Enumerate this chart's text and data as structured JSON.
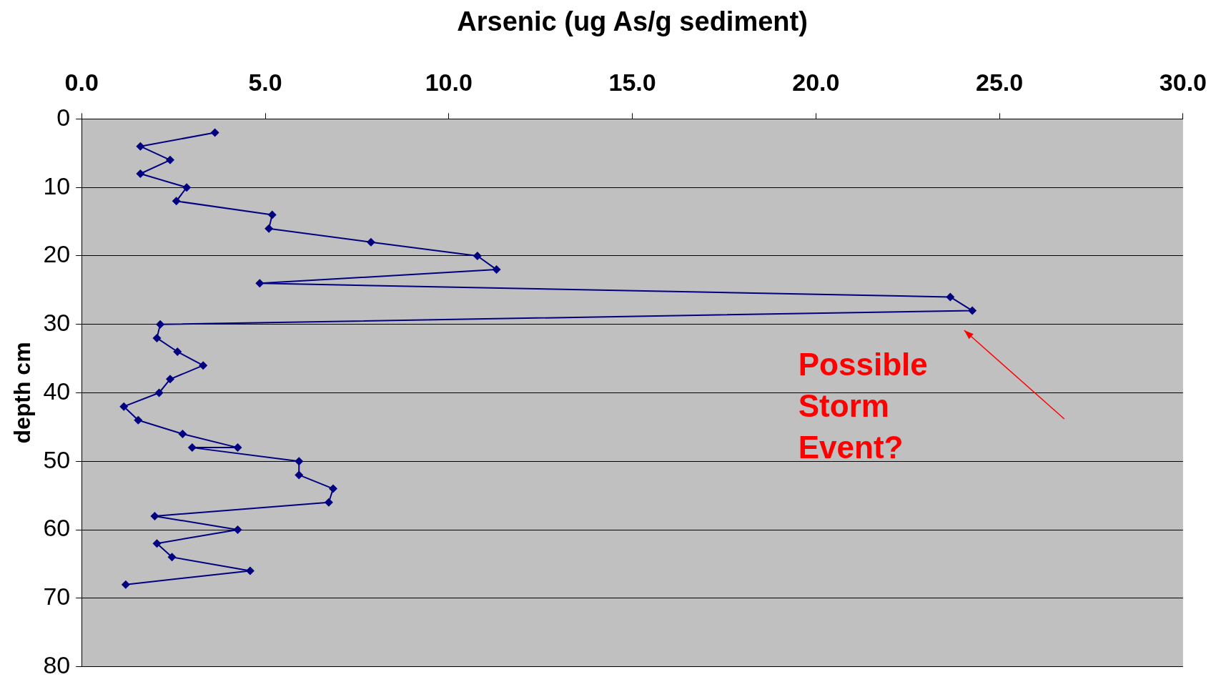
{
  "chart_data": {
    "type": "line",
    "xlabel": "Arsenic (ug As/g sediment)",
    "ylabel": "depth cm",
    "x": [
      3.63,
      1.6,
      2.41,
      1.6,
      2.86,
      2.58,
      5.19,
      5.1,
      7.88,
      10.78,
      11.3,
      4.85,
      23.66,
      24.26,
      2.14,
      2.05,
      2.61,
      3.31,
      2.41,
      2.11,
      1.15,
      1.54,
      2.75,
      4.25,
      3.01,
      5.92,
      5.92,
      6.85,
      6.73,
      1.99,
      4.25,
      2.05,
      2.46,
      4.59,
      1.2
    ],
    "series": [
      {
        "color": "#000080",
        "values": [
          2,
          4,
          6,
          8,
          10,
          12,
          14,
          16,
          18,
          20,
          22,
          24,
          26,
          28,
          30,
          32,
          34,
          36,
          38,
          40,
          42,
          44,
          46,
          48,
          48,
          50,
          52,
          54,
          56,
          58,
          60,
          62,
          64,
          66,
          68
        ]
      }
    ],
    "xlim": [
      0,
      30
    ],
    "xticks": [
      {
        "value": 0,
        "label": "0.0"
      },
      {
        "value": 5,
        "label": "5.0"
      },
      {
        "value": 10,
        "label": "10.0"
      },
      {
        "value": 15,
        "label": "15.0"
      },
      {
        "value": 20,
        "label": "20.0"
      },
      {
        "value": 25,
        "label": "25.0"
      },
      {
        "value": 30,
        "label": "30.0"
      }
    ],
    "ylim": [
      80,
      0
    ],
    "yticks": [
      0,
      10,
      20,
      30,
      40,
      50,
      60,
      70,
      80
    ],
    "grid": "y",
    "marker": "diamond",
    "line_style": "solid",
    "legend": false,
    "annotations": [
      "Possible Storm Event?"
    ]
  }
}
